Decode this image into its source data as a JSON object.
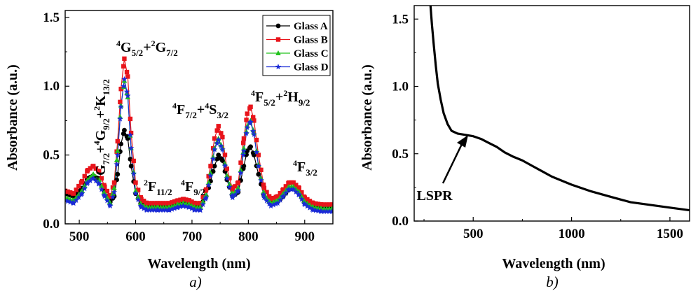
{
  "chart_data": [
    {
      "type": "line",
      "panel_caption": "a)",
      "xlabel": "Wavelength (nm)",
      "ylabel": "Absorbance (a.u.)",
      "xlim": [
        475,
        950
      ],
      "ylim": [
        0.0,
        1.55
      ],
      "xticks": [
        "500",
        "600",
        "700",
        "800",
        "900"
      ],
      "yticks": [
        "0.0",
        "0.5",
        "1.0",
        "1.5"
      ],
      "grid": false,
      "legend_position": "top-right",
      "x": [
        475,
        490,
        505,
        515,
        525,
        535,
        545,
        555,
        562,
        568,
        574,
        580,
        586,
        592,
        600,
        610,
        620,
        640,
        660,
        675,
        685,
        695,
        705,
        715,
        725,
        733,
        740,
        747,
        754,
        762,
        772,
        782,
        792,
        798,
        804,
        810,
        818,
        828,
        840,
        852,
        862,
        872,
        880,
        890,
        900,
        915,
        930,
        950
      ],
      "series": [
        {
          "name": "Glass A",
          "color": "#000000",
          "marker": "circle",
          "values": [
            0.22,
            0.2,
            0.26,
            0.33,
            0.35,
            0.32,
            0.23,
            0.16,
            0.2,
            0.36,
            0.58,
            0.68,
            0.62,
            0.42,
            0.22,
            0.14,
            0.13,
            0.13,
            0.13,
            0.15,
            0.16,
            0.15,
            0.13,
            0.13,
            0.2,
            0.31,
            0.42,
            0.5,
            0.46,
            0.32,
            0.2,
            0.23,
            0.42,
            0.53,
            0.56,
            0.5,
            0.36,
            0.2,
            0.15,
            0.16,
            0.2,
            0.25,
            0.26,
            0.22,
            0.16,
            0.13,
            0.12,
            0.12
          ]
        },
        {
          "name": "Glass B",
          "color": "#e8141b",
          "marker": "square",
          "values": [
            0.24,
            0.22,
            0.31,
            0.39,
            0.42,
            0.38,
            0.27,
            0.2,
            0.3,
            0.6,
            0.98,
            1.2,
            1.07,
            0.66,
            0.3,
            0.18,
            0.15,
            0.15,
            0.15,
            0.17,
            0.18,
            0.17,
            0.15,
            0.15,
            0.25,
            0.42,
            0.62,
            0.71,
            0.63,
            0.4,
            0.25,
            0.3,
            0.62,
            0.8,
            0.85,
            0.75,
            0.5,
            0.26,
            0.18,
            0.2,
            0.25,
            0.3,
            0.3,
            0.26,
            0.19,
            0.15,
            0.14,
            0.14
          ]
        },
        {
          "name": "Glass C",
          "color": "#21c21c",
          "marker": "triangle",
          "values": [
            0.19,
            0.17,
            0.24,
            0.32,
            0.36,
            0.32,
            0.22,
            0.15,
            0.26,
            0.53,
            0.86,
            1.04,
            0.92,
            0.55,
            0.24,
            0.14,
            0.12,
            0.12,
            0.12,
            0.14,
            0.15,
            0.14,
            0.12,
            0.12,
            0.21,
            0.37,
            0.55,
            0.62,
            0.55,
            0.35,
            0.21,
            0.26,
            0.55,
            0.71,
            0.75,
            0.66,
            0.43,
            0.21,
            0.15,
            0.17,
            0.22,
            0.27,
            0.27,
            0.23,
            0.16,
            0.12,
            0.11,
            0.11
          ]
        },
        {
          "name": "Glass D",
          "color": "#1a2ad6",
          "marker": "star",
          "values": [
            0.17,
            0.15,
            0.22,
            0.3,
            0.33,
            0.29,
            0.2,
            0.13,
            0.23,
            0.5,
            0.85,
            1.05,
            0.93,
            0.55,
            0.22,
            0.12,
            0.1,
            0.1,
            0.1,
            0.12,
            0.13,
            0.12,
            0.1,
            0.1,
            0.19,
            0.35,
            0.54,
            0.61,
            0.54,
            0.33,
            0.19,
            0.24,
            0.53,
            0.7,
            0.74,
            0.65,
            0.42,
            0.19,
            0.13,
            0.15,
            0.2,
            0.25,
            0.25,
            0.21,
            0.14,
            0.1,
            0.09,
            0.09
          ]
        }
      ]
    },
    {
      "type": "line",
      "panel_caption": "b)",
      "xlabel": "Wavelength (nm)",
      "ylabel": "Absorbance (a.u.)",
      "xlim": [
        200,
        1600
      ],
      "ylim": [
        0.0,
        1.6
      ],
      "xticks": [
        "500",
        "1000",
        "1500"
      ],
      "yticks": [
        "0.0",
        "0.5",
        "1.0",
        "1.5"
      ],
      "grid": false,
      "annotation": {
        "text": "LSPR",
        "target_x": 490,
        "target_y": 0.62
      },
      "series": [
        {
          "color": "#000000",
          "x": [
            282,
            290,
            300,
            310,
            320,
            335,
            350,
            370,
            390,
            420,
            460,
            500,
            540,
            580,
            620,
            660,
            700,
            750,
            800,
            850,
            900,
            1000,
            1100,
            1200,
            1300,
            1400,
            1500,
            1600
          ],
          "values": [
            1.62,
            1.46,
            1.3,
            1.15,
            1.02,
            0.9,
            0.8,
            0.72,
            0.67,
            0.65,
            0.64,
            0.63,
            0.61,
            0.58,
            0.55,
            0.51,
            0.48,
            0.45,
            0.41,
            0.37,
            0.33,
            0.27,
            0.22,
            0.18,
            0.14,
            0.12,
            0.1,
            0.08
          ]
        }
      ]
    }
  ]
}
